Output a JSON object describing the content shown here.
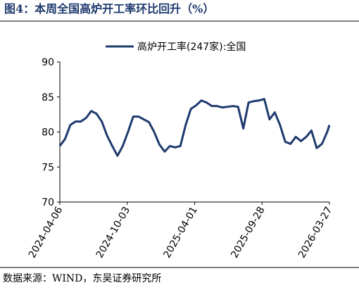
{
  "chart_data": {
    "type": "line",
    "title": "图4：本周全国高炉开工率环比回升（%）",
    "source": "数据来源：WIND，东吴证券研究所",
    "x": [
      "2024-04-06",
      "2024-04-20",
      "2024-05-04",
      "2024-05-18",
      "2024-06-01",
      "2024-06-15",
      "2024-06-29",
      "2024-07-13",
      "2024-07-27",
      "2024-08-10",
      "2024-08-24",
      "2024-09-07",
      "2024-09-21",
      "2024-10-05",
      "2024-10-19",
      "2024-11-02",
      "2024-11-16",
      "2024-11-30",
      "2024-12-14",
      "2024-12-28",
      "2025-01-11",
      "2025-01-25",
      "2025-02-08",
      "2025-02-22",
      "2025-03-08",
      "2025-03-22",
      "2025-04-05",
      "2025-04-19",
      "2025-05-03",
      "2025-05-17",
      "2025-05-31",
      "2025-06-14",
      "2025-06-28",
      "2025-07-12",
      "2025-07-26",
      "2025-08-09",
      "2025-08-23",
      "2025-09-06",
      "2025-09-20",
      "2025-10-04",
      "2025-10-18",
      "2025-11-01",
      "2025-11-15",
      "2025-11-29",
      "2025-12-13",
      "2025-12-27",
      "2026-01-10",
      "2026-01-24",
      "2026-02-07",
      "2026-02-21",
      "2026-03-07",
      "2026-03-21",
      "2026-03-27"
    ],
    "series": [
      {
        "name": "高炉开工率(247家):全国",
        "color": "#1f3a6e",
        "values": [
          78,
          79,
          81,
          81.5,
          81.5,
          82,
          83,
          82.6,
          81.5,
          79.5,
          78,
          76.6,
          78,
          80,
          82.2,
          82.2,
          81.8,
          81.4,
          80,
          78.2,
          77.2,
          78,
          77.8,
          78,
          81,
          83.3,
          83.8,
          84.5,
          84.2,
          83.7,
          83.7,
          83.5,
          83.6,
          83.7,
          83.6,
          80.5,
          84.2,
          84.4,
          84.5,
          84.7,
          81.8,
          82.8,
          81,
          78.6,
          78.3,
          79.3,
          78.7,
          79.3,
          80.2,
          77.7,
          78.3,
          80,
          81
        ]
      }
    ],
    "xlim": [
      "2024-04-06",
      "2026-03-27"
    ],
    "xticks": [
      "2024-04-06",
      "2024-10-03",
      "2025-04-01",
      "2025-09-28",
      "2026-03-27"
    ],
    "ylim": [
      70,
      90
    ],
    "yticks": [
      70,
      75,
      80,
      85,
      90
    ],
    "legend": "top"
  }
}
